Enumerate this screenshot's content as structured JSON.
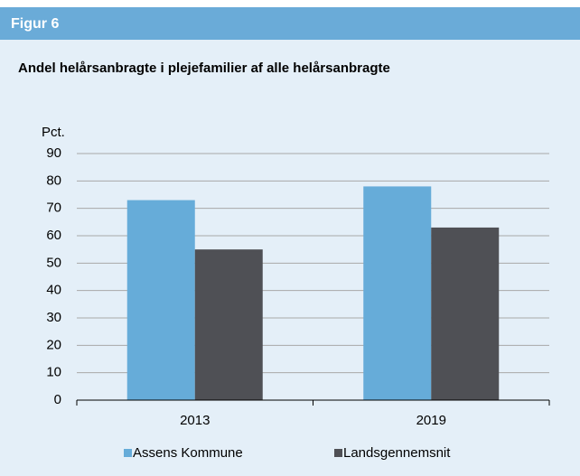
{
  "header": "Figur 6",
  "chart_data": {
    "type": "bar",
    "title": "Andel helårsanbragte i plejefamilier af alle helårsanbragte",
    "y_label": "Pct.",
    "categories": [
      "2013",
      "2019"
    ],
    "series": [
      {
        "name": "Assens Kommune",
        "color": "#66acd9",
        "values": [
          73,
          78
        ]
      },
      {
        "name": "Landsgennemsnit",
        "color": "#4f5055",
        "values": [
          55,
          63
        ]
      }
    ],
    "ylim": [
      0,
      90
    ],
    "yticks": [
      0,
      10,
      20,
      30,
      40,
      50,
      60,
      70,
      80,
      90
    ],
    "grid": true,
    "legend": "bottom"
  }
}
